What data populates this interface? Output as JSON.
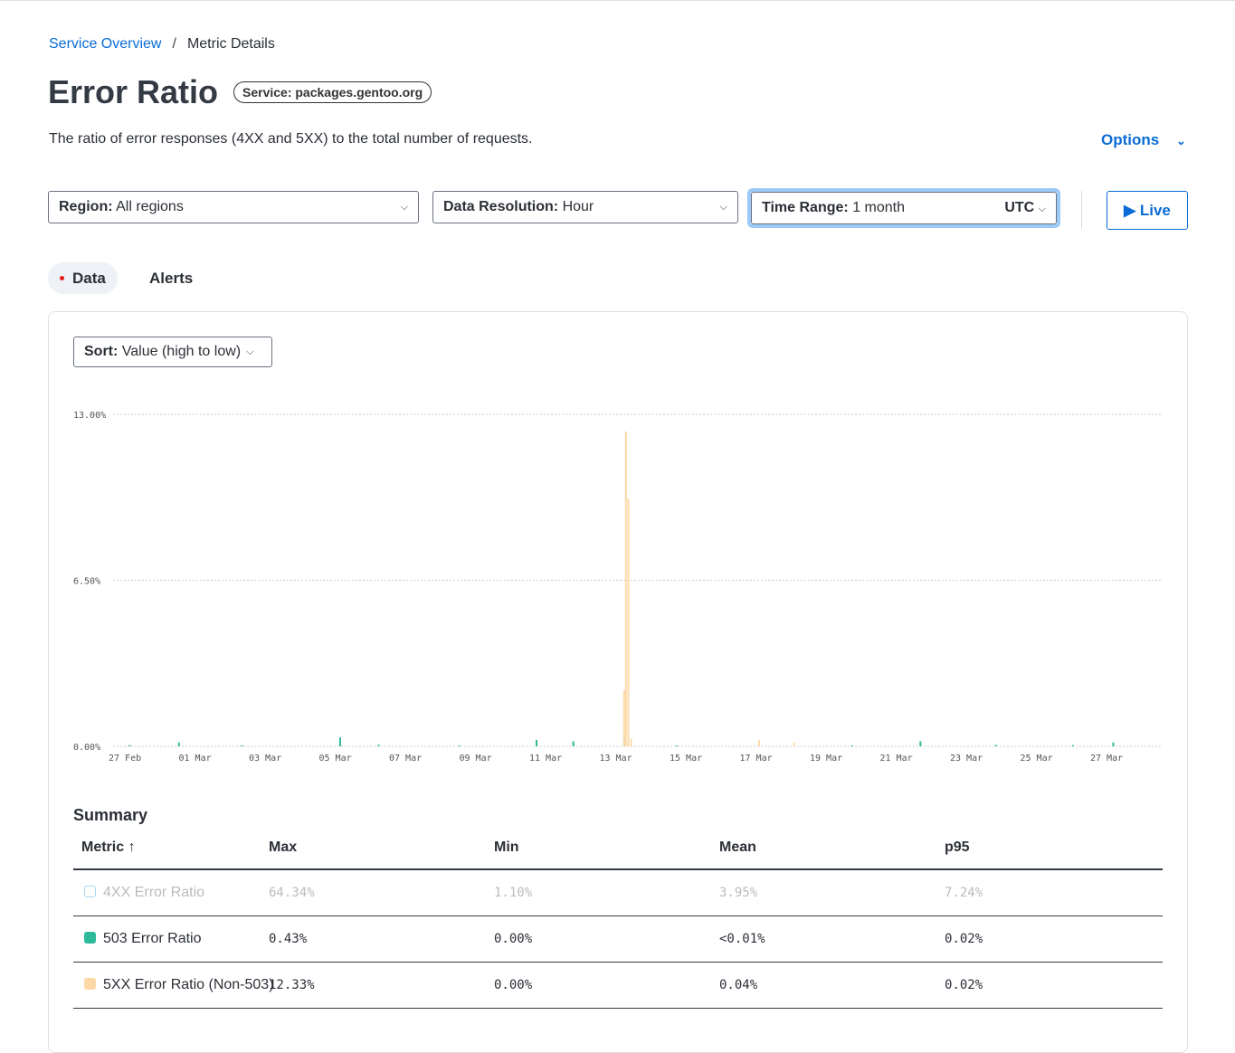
{
  "breadcrumb": {
    "parent": "Service Overview",
    "current": "Metric Details",
    "separator": "/"
  },
  "title": "Error Ratio",
  "service_badge": "Service: packages.gentoo.org",
  "description": "The ratio of error responses (4XX and 5XX) to the total number of requests.",
  "options_label": "Options",
  "filters": {
    "region": {
      "label": "Region:",
      "value": "All regions"
    },
    "resolution": {
      "label": "Data Resolution:",
      "value": "Hour"
    },
    "time_range": {
      "label": "Time Range:",
      "value": "1 month",
      "tz": "UTC"
    },
    "live_label": "▶ Live"
  },
  "tabs": [
    {
      "label": "Data"
    },
    {
      "label": "Alerts"
    }
  ],
  "sort": {
    "label": "Sort:",
    "value": "Value (high to low)"
  },
  "chart_data": {
    "type": "bar",
    "ylim": [
      0,
      13
    ],
    "y_ticks": [
      "0.00%",
      "6.50%",
      "13.00%"
    ],
    "y_tick_values": [
      0,
      6.5,
      13
    ],
    "x_range_days": [
      0,
      30
    ],
    "x_ticks": [
      "27 Feb",
      "01 Mar",
      "03 Mar",
      "05 Mar",
      "07 Mar",
      "09 Mar",
      "11 Mar",
      "13 Mar",
      "15 Mar",
      "17 Mar",
      "19 Mar",
      "21 Mar",
      "23 Mar",
      "25 Mar",
      "27 Mar"
    ],
    "grid": true,
    "series": [
      {
        "name": "503 Error Ratio",
        "color": "#2eb99a",
        "points": [
          [
            0.4,
            0.05
          ],
          [
            1.8,
            0.15
          ],
          [
            3.6,
            0.04
          ],
          [
            6.4,
            0.35
          ],
          [
            7.5,
            0.06
          ],
          [
            9.8,
            0.03
          ],
          [
            12.0,
            0.25
          ],
          [
            13.05,
            0.2
          ],
          [
            14.5,
            0.43
          ],
          [
            16.0,
            0.03
          ],
          [
            21.0,
            0.04
          ],
          [
            22.95,
            0.2
          ],
          [
            25.1,
            0.06
          ],
          [
            27.3,
            0.05
          ],
          [
            28.45,
            0.15
          ]
        ]
      },
      {
        "name": "5XX Error Ratio (Non-503)",
        "color": "#fdd9a8",
        "points": [
          [
            11.5,
            0.03
          ],
          [
            14.5,
            2.2
          ],
          [
            14.55,
            12.33
          ],
          [
            14.62,
            9.7
          ],
          [
            14.7,
            0.3
          ],
          [
            18.35,
            0.25
          ],
          [
            19.35,
            0.15
          ]
        ]
      }
    ]
  },
  "summary": {
    "title": "Summary",
    "columns": [
      "Metric ↑",
      "Max",
      "Min",
      "Mean",
      "p95"
    ],
    "rows": [
      {
        "metric": "4XX Error Ratio",
        "max": "64.34%",
        "min": "1.10%",
        "mean": "3.95%",
        "p95": "7.24%",
        "color": "#a8d8ef",
        "dim": true
      },
      {
        "metric": "503 Error Ratio",
        "max": "0.43%",
        "min": "0.00%",
        "mean": "<0.01%",
        "p95": "0.02%",
        "color": "#2eb99a",
        "dim": false
      },
      {
        "metric": "5XX Error Ratio (Non-503)",
        "max": "12.33%",
        "min": "0.00%",
        "mean": "0.04%",
        "p95": "0.02%",
        "color": "#fdd9a8",
        "dim": false
      }
    ]
  }
}
